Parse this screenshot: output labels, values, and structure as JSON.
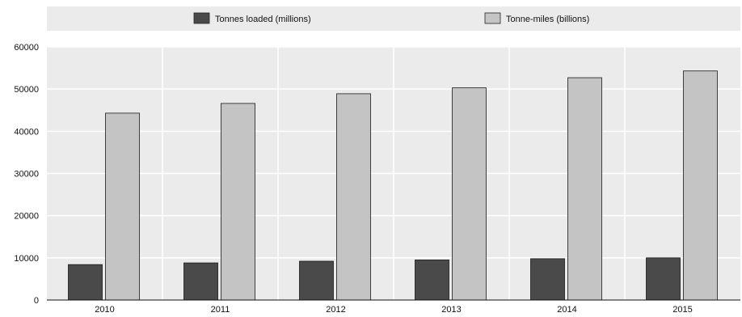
{
  "chart_data": {
    "type": "bar",
    "categories": [
      "2010",
      "2011",
      "2012",
      "2013",
      "2014",
      "2015"
    ],
    "series": [
      {
        "name": "Tonnes loaded (millions)",
        "values": [
          8400,
          8800,
          9200,
          9500,
          9800,
          10000
        ],
        "color": "#4a4a4a"
      },
      {
        "name": "Tonne-miles (billions)",
        "values": [
          44300,
          46600,
          48900,
          50300,
          52700,
          54300
        ],
        "color": "#c4c4c4"
      }
    ],
    "title": "",
    "xlabel": "",
    "ylabel": "",
    "ylim": [
      0,
      60000
    ],
    "yticks": [
      0,
      10000,
      20000,
      30000,
      40000,
      50000,
      60000
    ],
    "grid": true,
    "legend_position": "top"
  }
}
